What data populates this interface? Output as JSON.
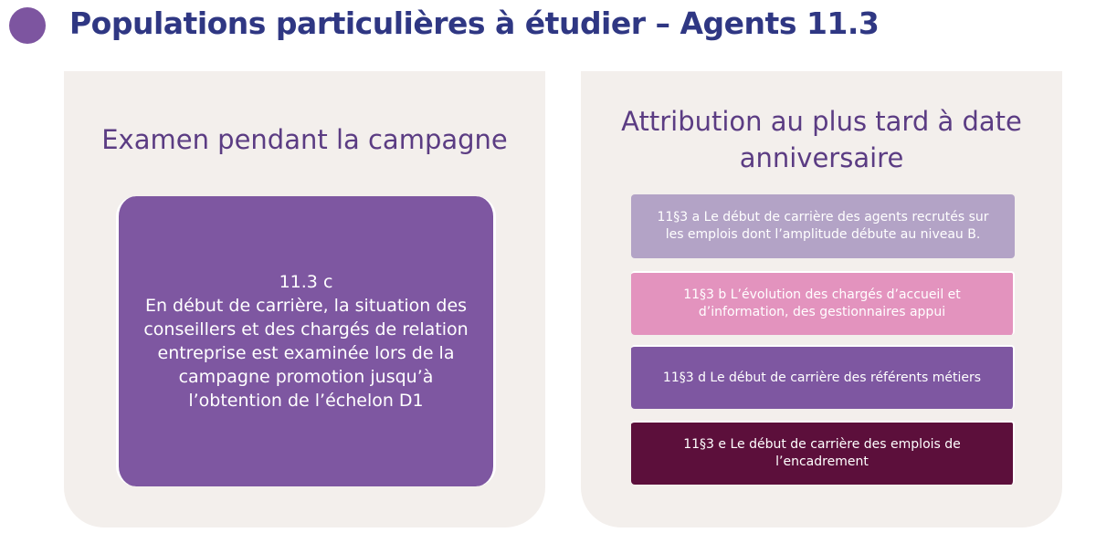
{
  "header": {
    "title": "Populations particulières à étudier – Agents 11.3"
  },
  "left_panel": {
    "heading": "Examen pendant la campagne",
    "box": {
      "lines": [
        "11.3 c",
        "En début de carrière, la situation des",
        "conseillers et des chargés de relation",
        "entreprise est examinée lors de la",
        "campagne promotion jusqu’à",
        "l’obtention de l’échelon D1"
      ]
    }
  },
  "right_panel": {
    "heading": [
      "Attribution au plus tard à date",
      "anniversaire"
    ],
    "items": [
      {
        "lines": [
          "11§3 a Le début de carrière des agents recrutés sur",
          "les emplois dont l’amplitude débute au niveau B."
        ]
      },
      {
        "lines": [
          "11§3 b L’évolution des chargés d’accueil et",
          "d’information, des gestionnaires appui"
        ]
      },
      {
        "lines": [
          "11§3 d Le début de carrière des référents métiers"
        ]
      },
      {
        "lines": [
          "11§3 e Le début de carrière des emplois de",
          "l’encadrement"
        ]
      }
    ]
  }
}
